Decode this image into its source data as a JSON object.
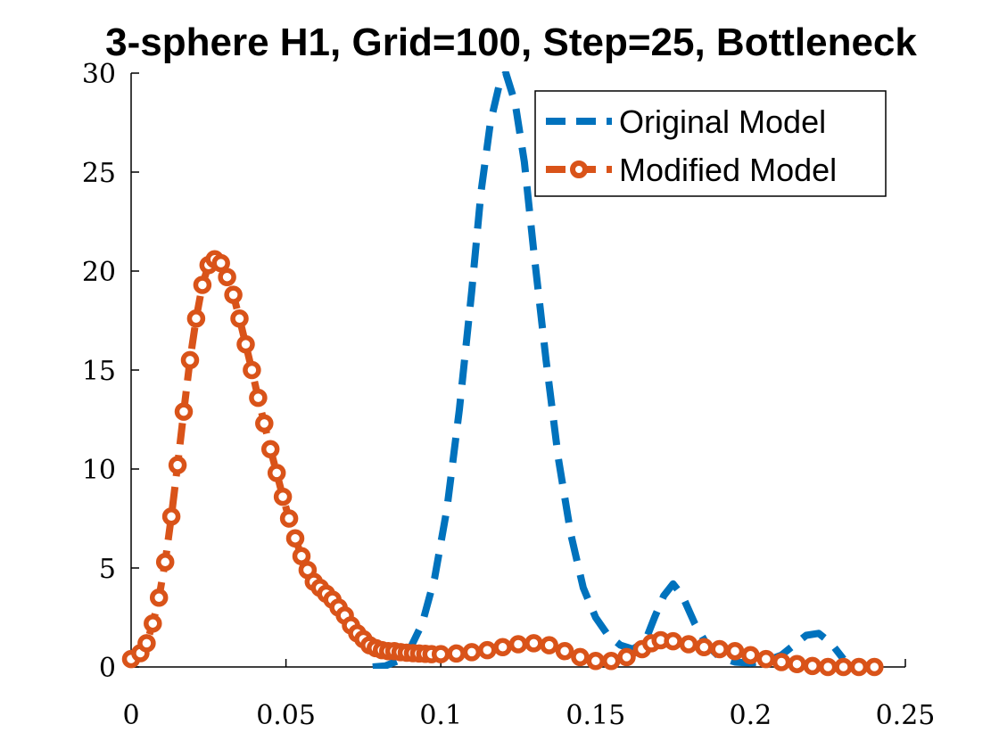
{
  "chart_data": {
    "type": "line",
    "title": "3-sphere H1, Grid=100, Step=25, Bottleneck",
    "xlabel": "",
    "ylabel": "",
    "xlim": [
      0,
      0.25
    ],
    "ylim": [
      0,
      30
    ],
    "x_ticks": [
      0,
      0.05,
      0.1,
      0.15,
      0.2,
      0.25
    ],
    "x_tick_labels": [
      "0",
      "0.05",
      "0.1",
      "0.15",
      "0.2",
      "0.25"
    ],
    "y_ticks": [
      0,
      5,
      10,
      15,
      20,
      25,
      30
    ],
    "y_tick_labels": [
      "0",
      "5",
      "10",
      "15",
      "20",
      "25",
      "30"
    ],
    "grid": false,
    "legend_position": "top-right",
    "series": [
      {
        "name": "Original Model",
        "color": "#0072BD",
        "style": "dashed",
        "x": [
          0.078,
          0.082,
          0.086,
          0.09,
          0.094,
          0.098,
          0.102,
          0.106,
          0.11,
          0.113,
          0.116,
          0.119,
          0.121,
          0.124,
          0.127,
          0.13,
          0.134,
          0.138,
          0.142,
          0.146,
          0.15,
          0.154,
          0.158,
          0.162,
          0.166,
          0.169,
          0.172,
          0.175,
          0.178,
          0.182,
          0.186,
          0.19,
          0.195,
          0.2,
          0.205,
          0.21,
          0.214,
          0.218,
          0.222,
          0.226,
          0.23
        ],
        "y": [
          0,
          0.05,
          0.3,
          0.9,
          2.2,
          4.5,
          8.0,
          13.0,
          19.0,
          24.0,
          27.5,
          29.5,
          30.0,
          28.5,
          25.5,
          21.0,
          15.5,
          10.5,
          6.7,
          4.0,
          2.5,
          1.6,
          1.1,
          0.9,
          1.3,
          2.5,
          3.6,
          4.2,
          3.6,
          2.2,
          1.1,
          0.5,
          0.25,
          0.2,
          0.3,
          0.6,
          1.1,
          1.6,
          1.7,
          1.2,
          0.4
        ]
      },
      {
        "name": "Modified Model",
        "color": "#D95319",
        "style": "dashed-circle",
        "x": [
          0.0,
          0.003,
          0.005,
          0.007,
          0.009,
          0.011,
          0.013,
          0.015,
          0.017,
          0.019,
          0.021,
          0.023,
          0.025,
          0.027,
          0.029,
          0.031,
          0.033,
          0.035,
          0.037,
          0.039,
          0.041,
          0.043,
          0.045,
          0.047,
          0.049,
          0.051,
          0.053,
          0.055,
          0.057,
          0.059,
          0.061,
          0.063,
          0.065,
          0.067,
          0.069,
          0.071,
          0.073,
          0.075,
          0.077,
          0.079,
          0.081,
          0.083,
          0.085,
          0.087,
          0.089,
          0.091,
          0.093,
          0.095,
          0.097,
          0.1,
          0.105,
          0.11,
          0.115,
          0.12,
          0.125,
          0.13,
          0.135,
          0.14,
          0.145,
          0.15,
          0.155,
          0.16,
          0.165,
          0.168,
          0.171,
          0.175,
          0.18,
          0.185,
          0.19,
          0.195,
          0.2,
          0.205,
          0.21,
          0.215,
          0.22,
          0.225,
          0.23,
          0.235,
          0.24
        ],
        "y": [
          0.4,
          0.7,
          1.2,
          2.2,
          3.5,
          5.3,
          7.6,
          10.2,
          12.9,
          15.5,
          17.6,
          19.3,
          20.3,
          20.6,
          20.4,
          19.7,
          18.8,
          17.6,
          16.3,
          15.0,
          13.6,
          12.3,
          11.0,
          9.8,
          8.6,
          7.5,
          6.5,
          5.6,
          4.9,
          4.3,
          4.0,
          3.7,
          3.4,
          3.0,
          2.6,
          2.1,
          1.7,
          1.4,
          1.1,
          0.95,
          0.85,
          0.8,
          0.8,
          0.75,
          0.72,
          0.7,
          0.68,
          0.66,
          0.65,
          0.65,
          0.68,
          0.75,
          0.85,
          1.0,
          1.15,
          1.2,
          1.1,
          0.8,
          0.5,
          0.3,
          0.3,
          0.5,
          0.9,
          1.2,
          1.35,
          1.3,
          1.15,
          1.0,
          0.9,
          0.8,
          0.6,
          0.4,
          0.25,
          0.15,
          0.05,
          0.0,
          0.0,
          0.0,
          0.0
        ]
      }
    ]
  }
}
